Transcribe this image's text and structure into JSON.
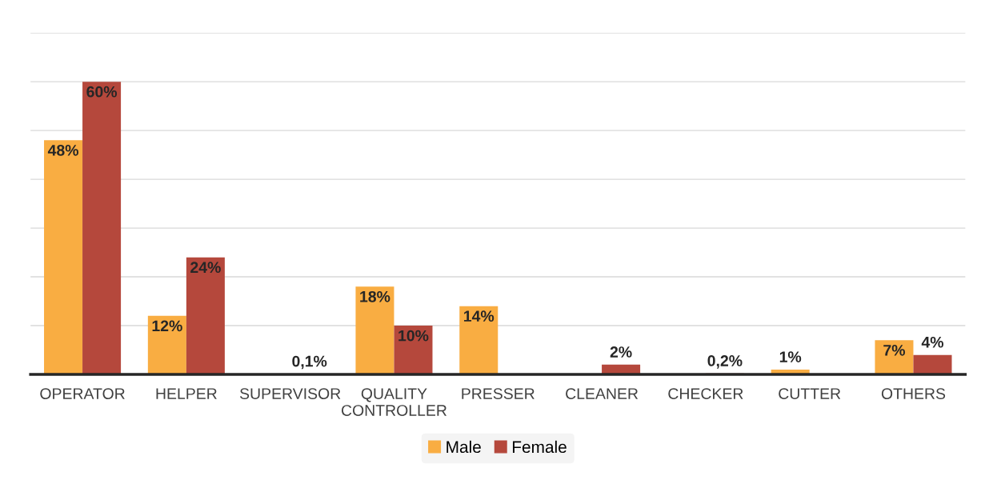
{
  "chart_data": {
    "type": "bar",
    "categories": [
      "OPERATOR",
      "HELPER",
      "SUPERVISOR",
      "QUALITY\nCONTROLLER",
      "PRESSER",
      "CLEANER",
      "CHECKER",
      "CUTTER",
      "OTHERS"
    ],
    "series": [
      {
        "name": "Male",
        "color": "#f9ad42",
        "values": [
          48,
          12,
          null,
          18,
          14,
          null,
          null,
          1,
          7
        ],
        "value_labels": [
          "48%",
          "12%",
          null,
          "18%",
          "14%",
          null,
          null,
          "1%",
          "7%"
        ]
      },
      {
        "name": "Female",
        "color": "#b5483c",
        "values": [
          60,
          24,
          0.1,
          10,
          null,
          2,
          0.2,
          null,
          4
        ],
        "value_labels": [
          "60%",
          "24%",
          "0,1%",
          "10%",
          null,
          "2%",
          "0,2%",
          null,
          "4%"
        ]
      }
    ],
    "ylim": [
      0,
      70
    ],
    "yticks": [
      {
        "value": 0,
        "label": null
      },
      {
        "value": 10,
        "label": null
      },
      {
        "value": 20,
        "label": null
      },
      {
        "value": 30,
        "label": null
      },
      {
        "value": 40,
        "label": null
      },
      {
        "value": 50,
        "label": null
      },
      {
        "value": 60,
        "label": null
      },
      {
        "value": 70,
        "label": null
      }
    ],
    "tick_labels": "x",
    "grid": "y",
    "legend": "bottom"
  }
}
